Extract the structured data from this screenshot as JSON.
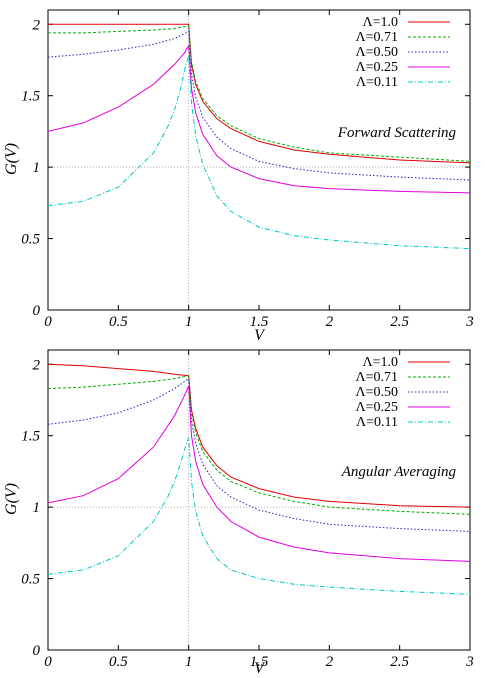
{
  "chart_data": [
    {
      "type": "line",
      "annotation": "Forward Scattering",
      "xlabel": "V",
      "ylabel": "G(V)",
      "xlim": [
        0,
        3
      ],
      "ylim": [
        0,
        2.1
      ],
      "x_ticks": [
        "0",
        "0.5",
        "1",
        "1.5",
        "2",
        "2.5",
        "3"
      ],
      "y_ticks": [
        "0",
        "0.5",
        "1",
        "1.5",
        "2"
      ],
      "reference_lines": {
        "x": 1,
        "y": 1
      },
      "legend_position": "top-right",
      "series": [
        {
          "name": "Λ=1.0",
          "color": "#e00000",
          "dash": "solid",
          "x": [
            0,
            0.25,
            0.5,
            0.75,
            0.9,
            1.0,
            1.02,
            1.05,
            1.1,
            1.2,
            1.3,
            1.5,
            1.75,
            2.0,
            2.5,
            3.0
          ],
          "y": [
            2.0,
            2.0,
            2.0,
            2.0,
            2.0,
            2.0,
            1.72,
            1.58,
            1.46,
            1.34,
            1.27,
            1.18,
            1.12,
            1.09,
            1.05,
            1.03
          ]
        },
        {
          "name": "Λ=0.71",
          "color": "#00b000",
          "dash": "dashed",
          "x": [
            0,
            0.25,
            0.5,
            0.75,
            0.9,
            1.0,
            1.02,
            1.05,
            1.1,
            1.2,
            1.3,
            1.5,
            1.75,
            2.0,
            2.5,
            3.0
          ],
          "y": [
            1.94,
            1.94,
            1.95,
            1.96,
            1.97,
            1.99,
            1.74,
            1.6,
            1.48,
            1.36,
            1.29,
            1.2,
            1.14,
            1.1,
            1.07,
            1.04
          ]
        },
        {
          "name": "Λ=0.50",
          "color": "#2020c0",
          "dash": "dotted",
          "x": [
            0,
            0.25,
            0.5,
            0.75,
            0.9,
            1.0,
            1.02,
            1.05,
            1.1,
            1.2,
            1.3,
            1.5,
            1.75,
            2.0,
            2.5,
            3.0
          ],
          "y": [
            1.77,
            1.79,
            1.82,
            1.86,
            1.9,
            1.95,
            1.65,
            1.49,
            1.35,
            1.21,
            1.13,
            1.04,
            0.99,
            0.96,
            0.93,
            0.91
          ]
        },
        {
          "name": "Λ=0.25",
          "color": "#e000e0",
          "dash": "solid",
          "x": [
            0,
            0.25,
            0.5,
            0.75,
            0.9,
            0.97,
            1.0,
            1.02,
            1.05,
            1.1,
            1.2,
            1.3,
            1.5,
            1.75,
            2.0,
            2.5,
            3.0
          ],
          "y": [
            1.25,
            1.31,
            1.42,
            1.58,
            1.72,
            1.8,
            1.85,
            1.55,
            1.38,
            1.23,
            1.08,
            1.0,
            0.92,
            0.87,
            0.85,
            0.83,
            0.82
          ]
        },
        {
          "name": "Λ=0.11",
          "color": "#00c8c8",
          "dash": "dashdot",
          "x": [
            0,
            0.25,
            0.5,
            0.75,
            0.85,
            0.9,
            0.95,
            0.98,
            1.0,
            1.02,
            1.05,
            1.1,
            1.2,
            1.3,
            1.5,
            1.75,
            2.0,
            2.5,
            3.0
          ],
          "y": [
            0.73,
            0.76,
            0.86,
            1.1,
            1.28,
            1.4,
            1.58,
            1.72,
            1.78,
            1.45,
            1.22,
            1.02,
            0.8,
            0.69,
            0.58,
            0.52,
            0.49,
            0.45,
            0.43
          ]
        }
      ]
    },
    {
      "type": "line",
      "annotation": "Angular Averaging",
      "xlabel": "V",
      "ylabel": "G(V)",
      "xlim": [
        0,
        3
      ],
      "ylim": [
        0,
        2.1
      ],
      "x_ticks": [
        "0",
        "0.5",
        "1",
        "1.5",
        "2",
        "2.5",
        "3"
      ],
      "y_ticks": [
        "0",
        "0.5",
        "1",
        "1.5",
        "2"
      ],
      "reference_lines": {
        "x": 1,
        "y": 1
      },
      "legend_position": "top-right",
      "series": [
        {
          "name": "Λ=1.0",
          "color": "#e00000",
          "dash": "solid",
          "x": [
            0,
            0.25,
            0.5,
            0.75,
            0.9,
            1.0,
            1.02,
            1.05,
            1.1,
            1.2,
            1.3,
            1.5,
            1.75,
            2.0,
            2.5,
            3.0
          ],
          "y": [
            2.0,
            1.99,
            1.97,
            1.95,
            1.93,
            1.92,
            1.68,
            1.55,
            1.42,
            1.29,
            1.21,
            1.13,
            1.07,
            1.04,
            1.01,
            1.0
          ]
        },
        {
          "name": "Λ=0.71",
          "color": "#00b000",
          "dash": "dashed",
          "x": [
            0,
            0.25,
            0.5,
            0.75,
            0.9,
            1.0,
            1.02,
            1.05,
            1.1,
            1.2,
            1.3,
            1.5,
            1.75,
            2.0,
            2.5,
            3.0
          ],
          "y": [
            1.83,
            1.84,
            1.86,
            1.88,
            1.9,
            1.92,
            1.66,
            1.52,
            1.39,
            1.26,
            1.18,
            1.1,
            1.04,
            1.0,
            0.97,
            0.95
          ]
        },
        {
          "name": "Λ=0.50",
          "color": "#2020c0",
          "dash": "dotted",
          "x": [
            0,
            0.25,
            0.5,
            0.75,
            0.9,
            1.0,
            1.02,
            1.05,
            1.1,
            1.2,
            1.3,
            1.5,
            1.75,
            2.0,
            2.5,
            3.0
          ],
          "y": [
            1.58,
            1.61,
            1.66,
            1.75,
            1.83,
            1.9,
            1.6,
            1.45,
            1.3,
            1.15,
            1.07,
            0.98,
            0.92,
            0.88,
            0.85,
            0.83
          ]
        },
        {
          "name": "Λ=0.25",
          "color": "#e000e0",
          "dash": "solid",
          "x": [
            0,
            0.25,
            0.5,
            0.75,
            0.9,
            0.97,
            1.0,
            1.02,
            1.05,
            1.1,
            1.2,
            1.3,
            1.5,
            1.75,
            2.0,
            2.5,
            3.0
          ],
          "y": [
            1.03,
            1.08,
            1.2,
            1.42,
            1.64,
            1.78,
            1.85,
            1.5,
            1.32,
            1.16,
            1.0,
            0.9,
            0.79,
            0.72,
            0.68,
            0.64,
            0.62
          ]
        },
        {
          "name": "Λ=0.11",
          "color": "#00c8c8",
          "dash": "dashdot",
          "x": [
            0,
            0.25,
            0.5,
            0.75,
            0.85,
            0.9,
            0.95,
            0.98,
            1.0,
            1.02,
            1.05,
            1.1,
            1.2,
            1.3,
            1.5,
            1.75,
            2.0,
            2.5,
            3.0
          ],
          "y": [
            0.53,
            0.56,
            0.66,
            0.9,
            1.07,
            1.18,
            1.33,
            1.43,
            1.49,
            1.18,
            0.97,
            0.8,
            0.64,
            0.56,
            0.5,
            0.46,
            0.44,
            0.41,
            0.39
          ]
        }
      ]
    }
  ]
}
